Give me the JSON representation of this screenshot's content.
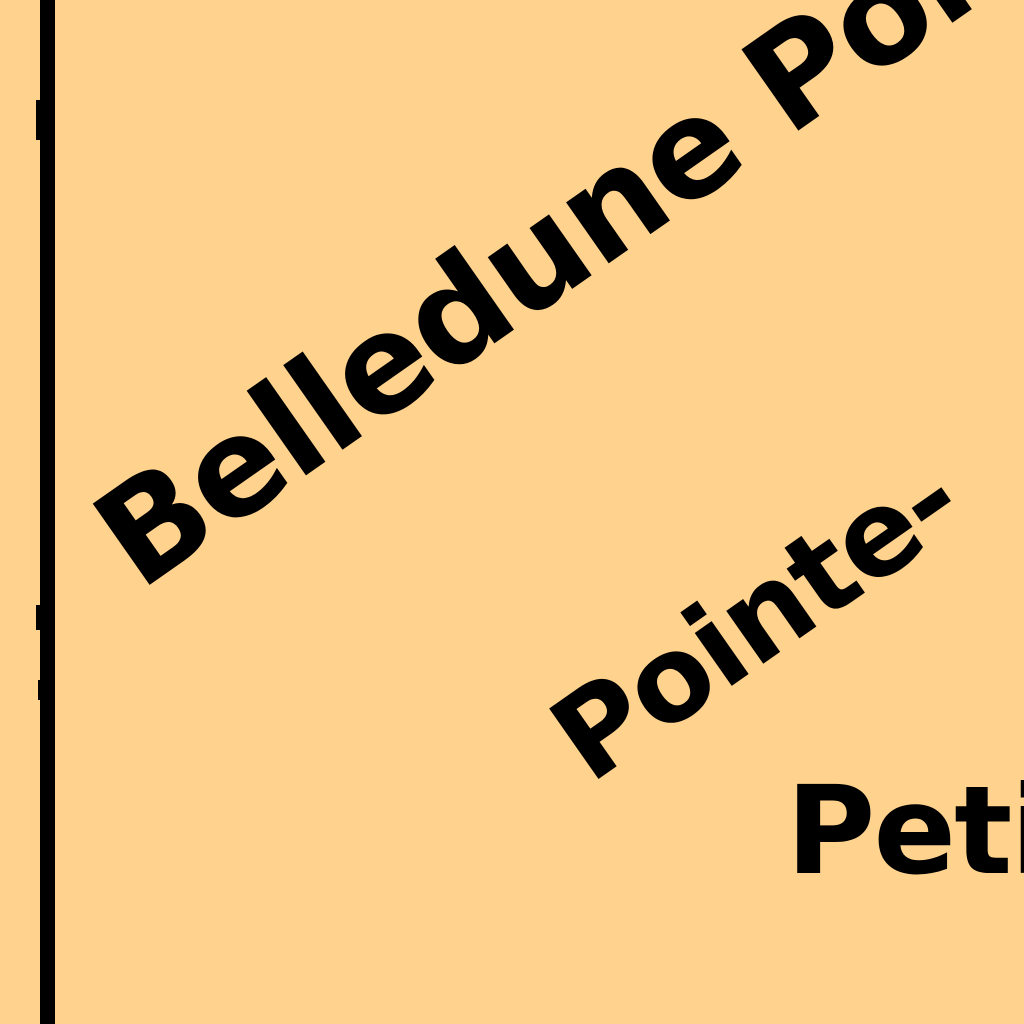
{
  "map": {
    "background_color": "#FFD38E",
    "ink_color": "#000000",
    "labels": {
      "belledune_point": "Belledune Point",
      "pointe": "Pointe-",
      "petit": "Peti"
    }
  }
}
